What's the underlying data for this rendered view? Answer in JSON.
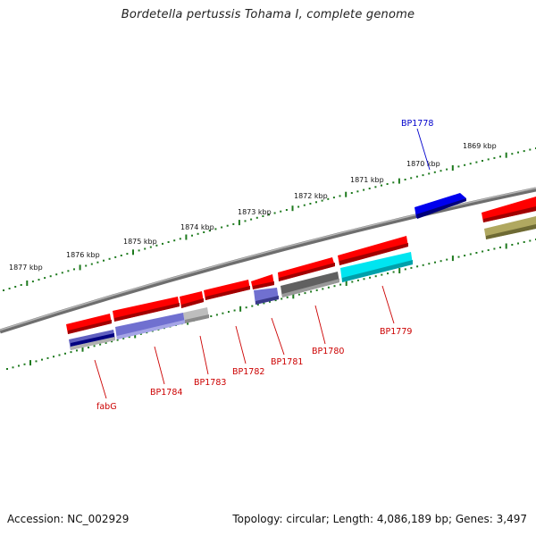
{
  "title": "Bordetella pertussis Tohama I, complete genome",
  "footer": {
    "accession": "Accession: NC_002929",
    "summary": "Topology: circular; Length: 4,086,189 bp; Genes: 3,497"
  },
  "kbp_labels": [
    "1877 kbp",
    "1876 kbp",
    "1875 kbp",
    "1874 kbp",
    "1873 kbp",
    "1872 kbp",
    "1871 kbp",
    "1870 kbp",
    "1869 kbp"
  ],
  "gene_labels": [
    "BP1778",
    "BP1779",
    "BP1780",
    "BP1781",
    "BP1782",
    "BP1783",
    "BP1784",
    "fabG"
  ],
  "colors": {
    "label_blue": "#0000cc",
    "label_red": "#cc0000",
    "tick_green": "#1e7a1e",
    "backbone": "#8a8a8a",
    "cds_red": "#ff0000",
    "cds_blue": "#0000ee",
    "cog_purple": "#7070d0",
    "cog_gray": "#606060",
    "cog_cyan": "#00e5f0",
    "cog_olive": "#b0a860",
    "cog_lightgray": "#bdbdbd",
    "cog_navy": "#000080"
  }
}
